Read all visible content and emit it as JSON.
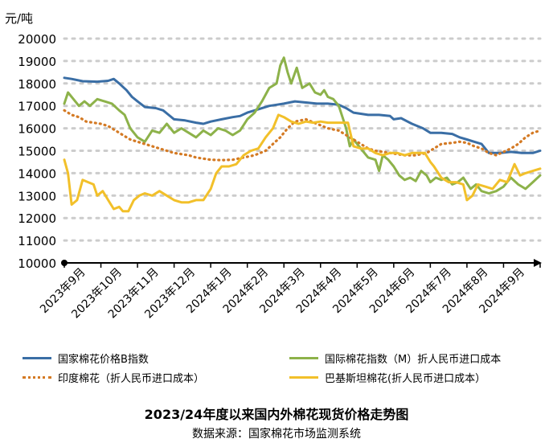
{
  "chart_data": {
    "type": "line",
    "title": "2023/24年度以来国内外棉花现货价格走势图",
    "source": "数据来源：国家棉花市场监测系统",
    "ylabel": "元/吨",
    "ylim": [
      10000,
      20000
    ],
    "yticks": [
      "10000",
      "11000",
      "12000",
      "13000",
      "14000",
      "15000",
      "16000",
      "17000",
      "18000",
      "19000",
      "20000"
    ],
    "grid": true,
    "xticks": [
      "2023年9月",
      "2023年10月",
      "2023年11月",
      "2023年12月",
      "2024年1月",
      "2024年2月",
      "2024年3月",
      "2024年4月",
      "2024年5月",
      "2024年6月",
      "2024年7月",
      "2024年8月",
      "2024年9月"
    ],
    "x_months": [
      0,
      1,
      2,
      3,
      4,
      5,
      6,
      7,
      8,
      9,
      10,
      11,
      12,
      13
    ],
    "legend_placement": "bottom",
    "series": [
      {
        "name": "国家棉花价格B指数",
        "color": "#3a6ea5",
        "style": "solid",
        "points": [
          [
            0,
            18250
          ],
          [
            0.2,
            18200
          ],
          [
            0.5,
            18100
          ],
          [
            0.9,
            18080
          ],
          [
            1.2,
            18120
          ],
          [
            1.35,
            18200
          ],
          [
            1.5,
            18000
          ],
          [
            1.7,
            17700
          ],
          [
            1.85,
            17400
          ],
          [
            2.0,
            17200
          ],
          [
            2.2,
            16950
          ],
          [
            2.5,
            16900
          ],
          [
            2.7,
            16800
          ],
          [
            2.85,
            16600
          ],
          [
            3.0,
            16400
          ],
          [
            3.3,
            16350
          ],
          [
            3.6,
            16250
          ],
          [
            3.8,
            16200
          ],
          [
            4.0,
            16300
          ],
          [
            4.3,
            16400
          ],
          [
            4.6,
            16500
          ],
          [
            4.8,
            16550
          ],
          [
            5.0,
            16700
          ],
          [
            5.3,
            16850
          ],
          [
            5.6,
            17000
          ],
          [
            5.8,
            17050
          ],
          [
            6.0,
            17100
          ],
          [
            6.3,
            17200
          ],
          [
            6.6,
            17150
          ],
          [
            6.9,
            17100
          ],
          [
            7.2,
            17100
          ],
          [
            7.5,
            17050
          ],
          [
            7.7,
            16900
          ],
          [
            7.9,
            16700
          ],
          [
            8.1,
            16650
          ],
          [
            8.3,
            16600
          ],
          [
            8.6,
            16600
          ],
          [
            8.9,
            16550
          ],
          [
            9.0,
            16400
          ],
          [
            9.2,
            16450
          ],
          [
            9.5,
            16200
          ],
          [
            9.8,
            16000
          ],
          [
            10.0,
            15800
          ],
          [
            10.3,
            15800
          ],
          [
            10.6,
            15750
          ],
          [
            10.8,
            15600
          ],
          [
            11.0,
            15500
          ],
          [
            11.2,
            15400
          ],
          [
            11.4,
            15300
          ],
          [
            11.6,
            14900
          ],
          [
            11.9,
            14900
          ],
          [
            12.2,
            14950
          ],
          [
            12.5,
            14900
          ],
          [
            12.8,
            14900
          ],
          [
            13.0,
            15000
          ]
        ]
      },
      {
        "name": "国际棉花指数（M）折人民币进口成本",
        "color": "#8db24a",
        "style": "solid",
        "points": [
          [
            0,
            17100
          ],
          [
            0.1,
            17600
          ],
          [
            0.25,
            17300
          ],
          [
            0.4,
            17000
          ],
          [
            0.55,
            17200
          ],
          [
            0.7,
            17000
          ],
          [
            0.9,
            17300
          ],
          [
            1.1,
            17200
          ],
          [
            1.3,
            17100
          ],
          [
            1.5,
            16800
          ],
          [
            1.65,
            16600
          ],
          [
            1.8,
            16000
          ],
          [
            2.0,
            15600
          ],
          [
            2.2,
            15400
          ],
          [
            2.4,
            15900
          ],
          [
            2.6,
            15800
          ],
          [
            2.8,
            16200
          ],
          [
            3.0,
            15800
          ],
          [
            3.2,
            16000
          ],
          [
            3.4,
            15800
          ],
          [
            3.6,
            15600
          ],
          [
            3.8,
            15900
          ],
          [
            4.0,
            15700
          ],
          [
            4.2,
            16000
          ],
          [
            4.4,
            15900
          ],
          [
            4.6,
            15700
          ],
          [
            4.8,
            15900
          ],
          [
            5.0,
            16400
          ],
          [
            5.2,
            16700
          ],
          [
            5.4,
            17200
          ],
          [
            5.6,
            17800
          ],
          [
            5.8,
            18000
          ],
          [
            5.9,
            18800
          ],
          [
            6.0,
            19150
          ],
          [
            6.1,
            18500
          ],
          [
            6.2,
            18000
          ],
          [
            6.35,
            18700
          ],
          [
            6.5,
            17800
          ],
          [
            6.7,
            18000
          ],
          [
            6.85,
            17600
          ],
          [
            7.0,
            17500
          ],
          [
            7.1,
            17700
          ],
          [
            7.2,
            17400
          ],
          [
            7.35,
            17300
          ],
          [
            7.5,
            17000
          ],
          [
            7.6,
            16500
          ],
          [
            7.7,
            16000
          ],
          [
            7.8,
            15200
          ],
          [
            7.9,
            15500
          ],
          [
            8.0,
            15300
          ],
          [
            8.15,
            15000
          ],
          [
            8.3,
            14700
          ],
          [
            8.5,
            14600
          ],
          [
            8.6,
            14100
          ],
          [
            8.7,
            14800
          ],
          [
            8.85,
            14600
          ],
          [
            9.0,
            14300
          ],
          [
            9.15,
            13900
          ],
          [
            9.3,
            13700
          ],
          [
            9.45,
            13800
          ],
          [
            9.6,
            13650
          ],
          [
            9.75,
            14100
          ],
          [
            9.9,
            13900
          ],
          [
            10.0,
            13600
          ],
          [
            10.15,
            13800
          ],
          [
            10.3,
            13700
          ],
          [
            10.45,
            13800
          ],
          [
            10.6,
            13500
          ],
          [
            10.75,
            13600
          ],
          [
            10.9,
            13800
          ],
          [
            11.1,
            13300
          ],
          [
            11.25,
            13500
          ],
          [
            11.4,
            13200
          ],
          [
            11.6,
            13100
          ],
          [
            11.8,
            13200
          ],
          [
            12.0,
            13400
          ],
          [
            12.2,
            13800
          ],
          [
            12.4,
            13500
          ],
          [
            12.6,
            13300
          ],
          [
            12.8,
            13600
          ],
          [
            13.0,
            13900
          ]
        ]
      },
      {
        "name": "印度棉花（折人民币进口成本）",
        "color": "#d47a24",
        "style": "dotted",
        "points": [
          [
            0,
            16800
          ],
          [
            0.2,
            16600
          ],
          [
            0.4,
            16500
          ],
          [
            0.6,
            16300
          ],
          [
            0.8,
            16250
          ],
          [
            1.0,
            16200
          ],
          [
            1.2,
            16100
          ],
          [
            1.4,
            15900
          ],
          [
            1.6,
            15700
          ],
          [
            1.8,
            15500
          ],
          [
            2.0,
            15400
          ],
          [
            2.2,
            15300
          ],
          [
            2.4,
            15200
          ],
          [
            2.6,
            15100
          ],
          [
            2.8,
            15000
          ],
          [
            3.0,
            14900
          ],
          [
            3.2,
            14850
          ],
          [
            3.4,
            14800
          ],
          [
            3.6,
            14700
          ],
          [
            3.8,
            14650
          ],
          [
            4.0,
            14600
          ],
          [
            4.3,
            14580
          ],
          [
            4.6,
            14600
          ],
          [
            4.9,
            14700
          ],
          [
            5.2,
            14800
          ],
          [
            5.5,
            15000
          ],
          [
            5.7,
            15300
          ],
          [
            5.9,
            15600
          ],
          [
            6.1,
            16000
          ],
          [
            6.3,
            16300
          ],
          [
            6.6,
            16400
          ],
          [
            6.9,
            16200
          ],
          [
            7.2,
            16000
          ],
          [
            7.5,
            15900
          ],
          [
            7.7,
            15700
          ],
          [
            7.9,
            15500
          ],
          [
            8.1,
            15300
          ],
          [
            8.3,
            15100
          ],
          [
            8.5,
            15000
          ],
          [
            8.7,
            14950
          ],
          [
            8.9,
            14900
          ],
          [
            9.1,
            14850
          ],
          [
            9.3,
            14800
          ],
          [
            9.6,
            14800
          ],
          [
            9.9,
            14900
          ],
          [
            10.1,
            15100
          ],
          [
            10.3,
            15300
          ],
          [
            10.6,
            15350
          ],
          [
            10.8,
            15400
          ],
          [
            11.0,
            15350
          ],
          [
            11.2,
            15200
          ],
          [
            11.4,
            15100
          ],
          [
            11.6,
            14900
          ],
          [
            11.8,
            14800
          ],
          [
            12.0,
            14950
          ],
          [
            12.2,
            15100
          ],
          [
            12.4,
            15300
          ],
          [
            12.6,
            15600
          ],
          [
            12.8,
            15800
          ],
          [
            13.0,
            15900
          ]
        ]
      },
      {
        "name": "巴基斯坦棉花(折人民币进口成本）",
        "color": "#f2c02a",
        "style": "solid",
        "points": [
          [
            0,
            14600
          ],
          [
            0.1,
            14000
          ],
          [
            0.2,
            12600
          ],
          [
            0.35,
            12800
          ],
          [
            0.5,
            13700
          ],
          [
            0.65,
            13600
          ],
          [
            0.8,
            13500
          ],
          [
            0.9,
            13000
          ],
          [
            1.05,
            13200
          ],
          [
            1.2,
            12800
          ],
          [
            1.35,
            12400
          ],
          [
            1.5,
            12500
          ],
          [
            1.6,
            12300
          ],
          [
            1.75,
            12300
          ],
          [
            1.9,
            12800
          ],
          [
            2.05,
            13000
          ],
          [
            2.2,
            13100
          ],
          [
            2.4,
            13000
          ],
          [
            2.6,
            13200
          ],
          [
            2.8,
            13000
          ],
          [
            3.0,
            12800
          ],
          [
            3.2,
            12700
          ],
          [
            3.4,
            12700
          ],
          [
            3.6,
            12800
          ],
          [
            3.8,
            12800
          ],
          [
            4.0,
            13300
          ],
          [
            4.15,
            14000
          ],
          [
            4.3,
            14300
          ],
          [
            4.5,
            14300
          ],
          [
            4.7,
            14400
          ],
          [
            4.9,
            14800
          ],
          [
            5.1,
            15000
          ],
          [
            5.3,
            15100
          ],
          [
            5.5,
            15600
          ],
          [
            5.7,
            16000
          ],
          [
            5.85,
            16600
          ],
          [
            6.0,
            16500
          ],
          [
            6.2,
            16300
          ],
          [
            6.4,
            16200
          ],
          [
            6.6,
            16300
          ],
          [
            6.8,
            16250
          ],
          [
            7.0,
            16300
          ],
          [
            7.2,
            16250
          ],
          [
            7.4,
            16250
          ],
          [
            7.6,
            16250
          ],
          [
            7.75,
            16250
          ],
          [
            7.9,
            15200
          ],
          [
            8.1,
            15100
          ],
          [
            8.3,
            15100
          ],
          [
            8.5,
            14900
          ],
          [
            8.7,
            14800
          ],
          [
            8.9,
            14900
          ],
          [
            9.1,
            14900
          ],
          [
            9.3,
            14800
          ],
          [
            9.5,
            14900
          ],
          [
            9.7,
            14900
          ],
          [
            9.85,
            14900
          ],
          [
            10.0,
            14500
          ],
          [
            10.1,
            14300
          ],
          [
            10.3,
            13800
          ],
          [
            10.5,
            13600
          ],
          [
            10.7,
            13600
          ],
          [
            10.9,
            13500
          ],
          [
            11.0,
            12800
          ],
          [
            11.15,
            13000
          ],
          [
            11.3,
            13500
          ],
          [
            11.5,
            13400
          ],
          [
            11.7,
            13300
          ],
          [
            11.9,
            13700
          ],
          [
            12.1,
            13600
          ],
          [
            12.3,
            14400
          ],
          [
            12.45,
            13900
          ],
          [
            12.6,
            14000
          ],
          [
            12.8,
            14100
          ],
          [
            13.0,
            14200
          ]
        ]
      }
    ]
  }
}
